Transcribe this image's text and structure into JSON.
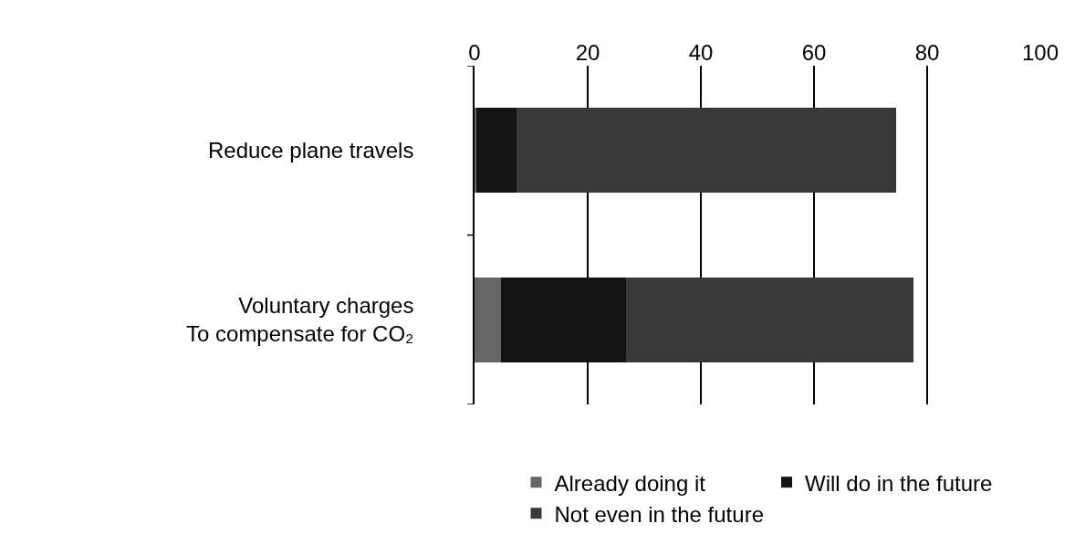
{
  "chart_data": {
    "type": "bar",
    "orientation": "horizontal",
    "stacked": true,
    "categories": [
      "Reduce plane travels",
      "Voluntary charges\nTo compensate for CO₂"
    ],
    "series": [
      {
        "name": "Already doing it",
        "color": "#666666",
        "values": [
          0.3,
          4.7
        ]
      },
      {
        "name": "Will do in the future",
        "color": "#131313",
        "values": [
          7.1,
          22.1
        ]
      },
      {
        "name": "Not even in the future",
        "color": "#383838",
        "values": [
          67.1,
          50.8
        ]
      }
    ],
    "xlim": [
      0,
      100
    ],
    "xticks": [
      0,
      20,
      40,
      60,
      80,
      100
    ],
    "grid": "x",
    "legend": "bottom"
  }
}
